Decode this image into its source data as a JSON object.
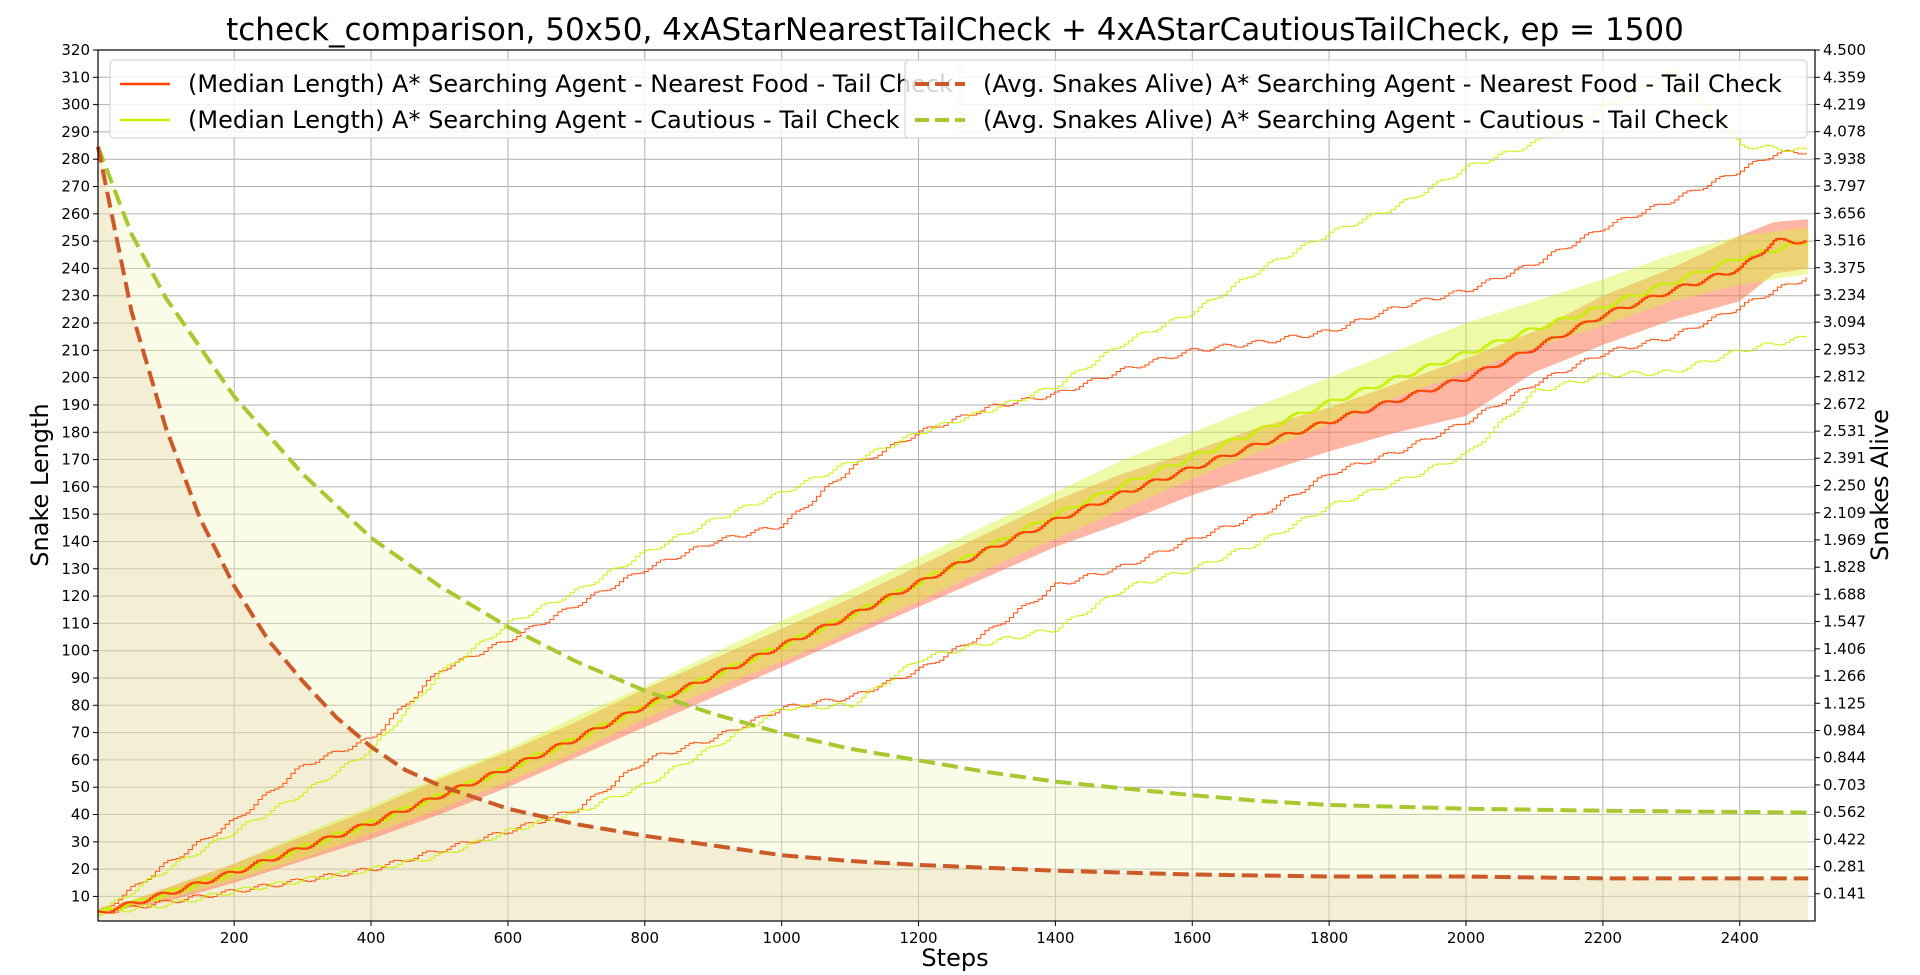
{
  "chart_data": {
    "type": "line",
    "title": "tcheck_comparison, 50x50, 4xAStarNearestTailCheck + 4xAStarCautiousTailCheck, ep = 1500",
    "xlabel": "Steps",
    "ylabel": "Snake Length",
    "y2label": "Snakes Alive",
    "xlim": [
      1,
      2510
    ],
    "ylim": [
      1,
      320
    ],
    "y2lim": [
      0,
      4.5
    ],
    "x_ticks": [
      200,
      400,
      600,
      800,
      1000,
      1200,
      1400,
      1600,
      1800,
      2000,
      2200,
      2400
    ],
    "y_ticks": [
      10,
      20,
      30,
      40,
      50,
      60,
      70,
      80,
      90,
      100,
      110,
      120,
      130,
      140,
      150,
      160,
      170,
      180,
      190,
      200,
      210,
      220,
      230,
      240,
      250,
      260,
      270,
      280,
      290,
      300,
      310,
      320
    ],
    "y2_ticks": [
      "0.141",
      "0.281",
      "0.422",
      "0.562",
      "0.703",
      "0.844",
      "0.984",
      "1.125",
      "1.266",
      "1.406",
      "1.547",
      "1.688",
      "1.828",
      "1.969",
      "2.109",
      "2.250",
      "2.391",
      "2.531",
      "2.672",
      "2.812",
      "2.953",
      "3.094",
      "3.234",
      "3.375",
      "3.516",
      "3.656",
      "3.797",
      "3.938",
      "4.078",
      "4.219",
      "4.359",
      "4.500"
    ],
    "grid": true,
    "legend_placement": "top",
    "series": [
      {
        "name": "(Median Length) A* Searching Agent - Nearest Food - Tail Check",
        "axis": "left",
        "style": "solid",
        "color": "#ff4500",
        "x": [
          1,
          100,
          200,
          300,
          400,
          500,
          600,
          700,
          800,
          900,
          1000,
          1100,
          1200,
          1300,
          1400,
          1500,
          1600,
          1700,
          1800,
          1900,
          2000,
          2100,
          2200,
          2300,
          2400,
          2450,
          2500
        ],
        "median": [
          4,
          11,
          19,
          28,
          37,
          47,
          57,
          68,
          80,
          91,
          102,
          113,
          125,
          137,
          148,
          158,
          167,
          176,
          184,
          192,
          200,
          211,
          223,
          232,
          240,
          250,
          250
        ],
        "band_low": [
          4,
          8,
          15,
          23,
          31,
          40,
          50,
          61,
          72,
          83,
          94,
          105,
          116,
          127,
          138,
          147,
          157,
          165,
          173,
          180,
          186,
          202,
          212,
          221,
          228,
          238,
          240
        ],
        "band_high": [
          4,
          13,
          22,
          32,
          42,
          53,
          63,
          74,
          86,
          97,
          108,
          119,
          131,
          143,
          155,
          165,
          173,
          182,
          189,
          198,
          207,
          217,
          230,
          240,
          252,
          257,
          258
        ],
        "min": [
          4,
          8,
          12,
          16,
          20,
          27,
          34,
          42,
          60,
          68,
          79,
          83,
          93,
          107,
          124,
          131,
          141,
          150,
          165,
          173,
          184,
          198,
          209,
          215,
          226,
          232,
          237
        ],
        "max": [
          4,
          22,
          38,
          58,
          68,
          93,
          104,
          117,
          130,
          140,
          146,
          167,
          180,
          189,
          194,
          203,
          210,
          213,
          217,
          226,
          232,
          242,
          255,
          265,
          276,
          282,
          283
        ]
      },
      {
        "name": "(Median Length) A* Searching Agent - Cautious - Tail Check",
        "axis": "left",
        "style": "solid",
        "color": "#c8f000",
        "x": [
          1,
          100,
          200,
          300,
          400,
          500,
          600,
          700,
          800,
          900,
          1000,
          1100,
          1200,
          1300,
          1400,
          1500,
          1600,
          1700,
          1800,
          1900,
          2000,
          2100,
          2200,
          2300,
          2400,
          2500
        ],
        "median": [
          4,
          11,
          19,
          28,
          37,
          47,
          57,
          68,
          80,
          91,
          102,
          113,
          125,
          138,
          150,
          161,
          171,
          181,
          191,
          200,
          209,
          218,
          226,
          235,
          244,
          250
        ],
        "band_low": [
          4,
          9,
          16,
          24,
          33,
          42,
          52,
          63,
          75,
          86,
          96,
          107,
          118,
          130,
          141,
          152,
          163,
          173,
          183,
          193,
          202,
          211,
          219,
          228,
          234,
          238
        ],
        "band_high": [
          4,
          13,
          22,
          33,
          43,
          54,
          64,
          76,
          87,
          99,
          111,
          122,
          134,
          146,
          158,
          170,
          180,
          190,
          200,
          210,
          220,
          228,
          236,
          245,
          252,
          255
        ],
        "min": [
          4,
          7,
          12,
          16,
          20,
          25,
          34,
          41,
          51,
          65,
          79,
          80,
          97,
          103,
          108,
          123,
          130,
          140,
          153,
          162,
          172,
          195,
          201,
          202,
          210,
          215
        ],
        "max": [
          4,
          20,
          34,
          48,
          64,
          92,
          110,
          122,
          136,
          148,
          158,
          169,
          180,
          188,
          197,
          213,
          224,
          240,
          253,
          263,
          277,
          286,
          299,
          312,
          285,
          283
        ]
      },
      {
        "name": "(Avg. Snakes Alive) A* Searching Agent - Nearest Food - Tail Check",
        "axis": "right",
        "style": "dashed",
        "color": "#cc5a28",
        "x": [
          1,
          50,
          100,
          150,
          200,
          250,
          300,
          350,
          400,
          450,
          500,
          600,
          700,
          800,
          900,
          1000,
          1100,
          1200,
          1400,
          1600,
          1800,
          2000,
          2200,
          2500
        ],
        "values": [
          4.0,
          3.15,
          2.55,
          2.08,
          1.73,
          1.45,
          1.24,
          1.05,
          0.9,
          0.78,
          0.7,
          0.58,
          0.5,
          0.44,
          0.39,
          0.34,
          0.31,
          0.29,
          0.26,
          0.24,
          0.23,
          0.23,
          0.22,
          0.22
        ]
      },
      {
        "name": "(Avg. Snakes Alive) A* Searching Agent - Cautious - Tail Check",
        "axis": "right",
        "style": "dashed",
        "color": "#a8c832",
        "x": [
          1,
          50,
          100,
          200,
          300,
          400,
          500,
          600,
          700,
          800,
          900,
          1000,
          1100,
          1200,
          1300,
          1400,
          1600,
          1700,
          1800,
          2000,
          2200,
          2500
        ],
        "values": [
          4.0,
          3.55,
          3.22,
          2.71,
          2.31,
          1.98,
          1.73,
          1.52,
          1.34,
          1.19,
          1.07,
          0.97,
          0.89,
          0.83,
          0.77,
          0.72,
          0.65,
          0.62,
          0.6,
          0.58,
          0.57,
          0.56
        ]
      }
    ]
  }
}
